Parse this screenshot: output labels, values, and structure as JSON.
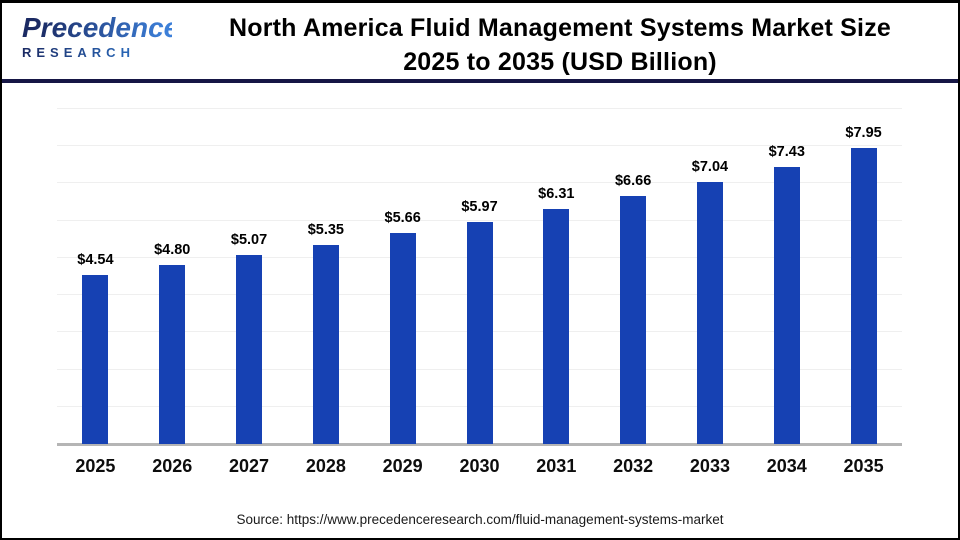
{
  "header": {
    "logo": {
      "brand": "Precedence",
      "sub": "RESEARCH"
    },
    "title_line1": "North America Fluid Management Systems Market Size",
    "title_line2": "2025 to 2035 (USD Billion)"
  },
  "chart_data": {
    "type": "bar",
    "title": "North America Fluid Management Systems Market Size 2025 to 2035 (USD Billion)",
    "categories": [
      "2025",
      "2026",
      "2027",
      "2028",
      "2029",
      "2030",
      "2031",
      "2032",
      "2033",
      "2034",
      "2035"
    ],
    "values": [
      4.54,
      4.8,
      5.07,
      5.35,
      5.66,
      5.97,
      6.31,
      6.66,
      7.04,
      7.43,
      7.95
    ],
    "value_labels": [
      "$4.54",
      "$4.80",
      "$5.07",
      "$5.35",
      "$5.66",
      "$5.97",
      "$6.31",
      "$6.66",
      "$7.04",
      "$7.43",
      "$7.95"
    ],
    "xlabel": "",
    "ylabel": "",
    "unit": "USD Billion",
    "ylim": [
      0,
      9
    ],
    "grid": true,
    "legend": "none",
    "bar_color": "#1641b3"
  },
  "colors": {
    "bar": "#1641b3",
    "separator": "#161645",
    "logo_gradient_start": "#1b2a63",
    "logo_gradient_end": "#3c7fd8",
    "gridline": "#efefef",
    "axis_line": "#b5b5b5"
  },
  "footer": {
    "source": "Source: https://www.precedenceresearch.com/fluid-management-systems-market"
  }
}
